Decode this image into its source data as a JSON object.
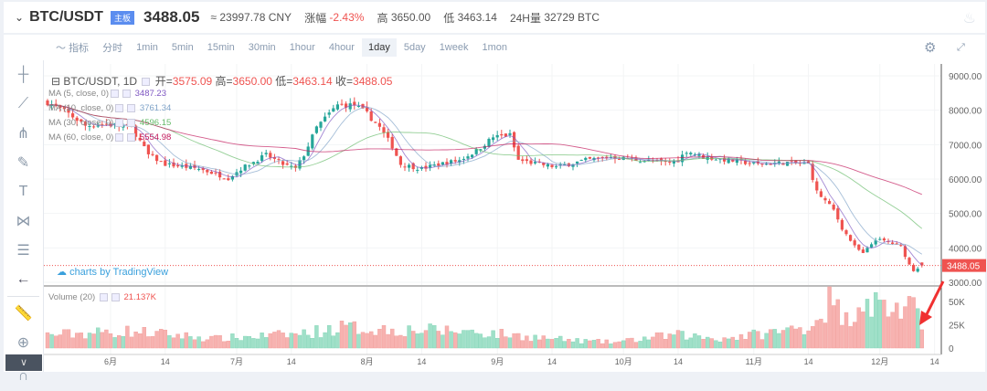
{
  "header": {
    "symbol": "BTC/USDT",
    "badge": "主板",
    "price": "3488.05",
    "cny": "≈ 23997.78 CNY",
    "change_label": "涨幅",
    "change": "-2.43%",
    "high_label": "高",
    "high": "3650.00",
    "low_label": "低",
    "low": "3463.14",
    "vol_label": "24H量",
    "vol": "32729 BTC"
  },
  "toolbar": {
    "indicator": "指标",
    "items": [
      "分时",
      "1min",
      "5min",
      "15min",
      "30min",
      "1hour",
      "4hour",
      "1day",
      "5day",
      "1week",
      "1mon"
    ],
    "active": "1day"
  },
  "legend": {
    "title": "BTC/USDT, 1D",
    "open_label": "开=",
    "open": "3575.09",
    "high_label": "高=",
    "high": "3650.00",
    "low_label": "低=",
    "low": "3463.14",
    "close_label": "收=",
    "close": "3488.05",
    "ma": [
      {
        "label": "MA (5, close, 0)",
        "value": "3487.23",
        "color": "#7e57c2"
      },
      {
        "label": "MA (10, close, 0)",
        "value": "3761.34",
        "color": "#7fa3c8"
      },
      {
        "label": "MA (30, close, 0)",
        "value": "4596.15",
        "color": "#66bb6a"
      },
      {
        "label": "MA (60, close, 0)",
        "value": "5554.98",
        "color": "#c2185b"
      }
    ],
    "volume_label": "Volume (20)",
    "volume_value": "21.137K"
  },
  "watermark": "charts by TradingView",
  "colors": {
    "up": "#26a69a",
    "down": "#ef5350",
    "volUp": "#9fe0c8",
    "volDown": "#f7b2b0"
  },
  "chart_data": {
    "type": "candlestick",
    "price_axis": [
      "9000.00",
      "8000.00",
      "7000.00",
      "6000.00",
      "5000.00",
      "4000.00",
      "3000.00"
    ],
    "ylim": [
      3000,
      9000
    ],
    "last_price": "3488.05",
    "volume_axis": [
      "50K",
      "25K",
      "0"
    ],
    "x_ticks": [
      {
        "day": 15,
        "label": "6月"
      },
      {
        "day": 28,
        "label": "14"
      },
      {
        "day": 45,
        "label": "7月"
      },
      {
        "day": 58,
        "label": "14"
      },
      {
        "day": 76,
        "label": "8月"
      },
      {
        "day": 89,
        "label": "14"
      },
      {
        "day": 107,
        "label": "9月"
      },
      {
        "day": 120,
        "label": "14"
      },
      {
        "day": 137,
        "label": "10月"
      },
      {
        "day": 150,
        "label": "14"
      },
      {
        "day": 168,
        "label": "11月"
      },
      {
        "day": 181,
        "label": "14"
      },
      {
        "day": 198,
        "label": "12月"
      },
      {
        "day": 211,
        "label": "14"
      }
    ],
    "close_points": [
      [
        0,
        8230
      ],
      [
        5,
        7900
      ],
      [
        9,
        7550
      ],
      [
        14,
        7600
      ],
      [
        20,
        7500
      ],
      [
        24,
        6700
      ],
      [
        28,
        6430
      ],
      [
        36,
        6300
      ],
      [
        43,
        6030
      ],
      [
        46,
        6300
      ],
      [
        52,
        6700
      ],
      [
        56,
        6430
      ],
      [
        59,
        6300
      ],
      [
        61,
        6700
      ],
      [
        64,
        7500
      ],
      [
        67,
        7900
      ],
      [
        69,
        8150
      ],
      [
        73,
        8150
      ],
      [
        76,
        7900
      ],
      [
        79,
        7500
      ],
      [
        82,
        6950
      ],
      [
        84,
        6430
      ],
      [
        89,
        6300
      ],
      [
        93,
        6430
      ],
      [
        98,
        6550
      ],
      [
        102,
        6820
      ],
      [
        106,
        7220
      ],
      [
        110,
        7280
      ],
      [
        112,
        6550
      ],
      [
        117,
        6430
      ],
      [
        121,
        6350
      ],
      [
        128,
        6550
      ],
      [
        134,
        6640
      ],
      [
        141,
        6550
      ],
      [
        147,
        6480
      ],
      [
        150,
        6550
      ],
      [
        152,
        6820
      ],
      [
        156,
        6640
      ],
      [
        163,
        6530
      ],
      [
        169,
        6430
      ],
      [
        176,
        6480
      ],
      [
        181,
        6430
      ],
      [
        183,
        5630
      ],
      [
        187,
        5100
      ],
      [
        189,
        4570
      ],
      [
        192,
        4040
      ],
      [
        194,
        3830
      ],
      [
        197,
        4250
      ],
      [
        200,
        4170
      ],
      [
        203,
        4040
      ],
      [
        205,
        3510
      ],
      [
        206,
        3350
      ],
      [
        208,
        3488
      ]
    ],
    "volume_points_k": [
      [
        0,
        14
      ],
      [
        20,
        18
      ],
      [
        40,
        10
      ],
      [
        60,
        15
      ],
      [
        70,
        22
      ],
      [
        80,
        20
      ],
      [
        100,
        18
      ],
      [
        115,
        12
      ],
      [
        125,
        8
      ],
      [
        135,
        6
      ],
      [
        145,
        12
      ],
      [
        150,
        14
      ],
      [
        160,
        10
      ],
      [
        175,
        18
      ],
      [
        182,
        25
      ],
      [
        186,
        50
      ],
      [
        190,
        30
      ],
      [
        194,
        55
      ],
      [
        198,
        45
      ],
      [
        203,
        42
      ],
      [
        206,
        40
      ],
      [
        208,
        21
      ]
    ]
  }
}
